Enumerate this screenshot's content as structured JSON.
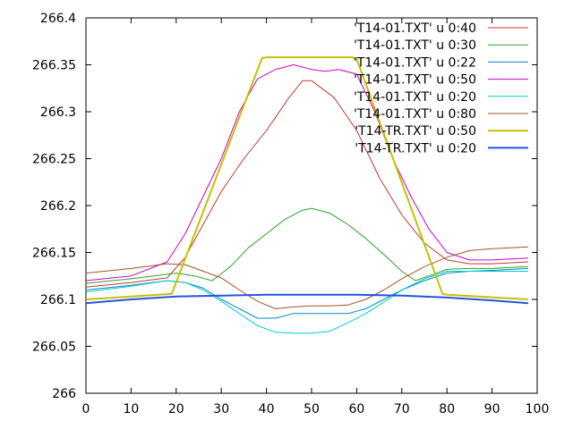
{
  "chart_data": {
    "type": "line",
    "title": "",
    "xlabel": "",
    "ylabel": "",
    "xlim": [
      0,
      100
    ],
    "ylim": [
      266.0,
      266.4
    ],
    "grid": false,
    "legend_position": "top-right",
    "x_ticks": [
      0,
      10,
      20,
      30,
      40,
      50,
      60,
      70,
      80,
      90,
      100
    ],
    "x_tick_labels": [
      "0",
      "10",
      "20",
      "30",
      "40",
      "50",
      "60",
      "70",
      "80",
      "90",
      "100"
    ],
    "y_ticks": [
      266.0,
      266.05,
      266.1,
      266.15,
      266.2,
      266.25,
      266.3,
      266.35,
      266.4
    ],
    "y_tick_labels": [
      "266",
      "266.05",
      "266.1",
      "266.15",
      "266.2",
      "266.25",
      "266.3",
      "266.35",
      "266.4"
    ],
    "series": [
      {
        "name": "'T14-01.TXT' u 0:40",
        "color": "#c0392b",
        "x": [
          0,
          10,
          18,
          22,
          26,
          30,
          35,
          40,
          45,
          48,
          50,
          55,
          60,
          65,
          70,
          75,
          80,
          85,
          90,
          98
        ],
        "y": [
          266.113,
          266.118,
          266.123,
          266.145,
          266.18,
          266.215,
          266.25,
          266.28,
          266.315,
          266.333,
          266.333,
          266.315,
          266.28,
          266.23,
          266.19,
          266.16,
          266.142,
          266.138,
          266.138,
          266.14
        ]
      },
      {
        "name": "'T14-01.TXT' u 0:30",
        "color": "#2ca02c",
        "x": [
          0,
          10,
          20,
          24,
          28,
          32,
          36,
          40,
          44,
          48,
          50,
          54,
          58,
          62,
          66,
          70,
          73,
          76,
          80,
          85,
          90,
          98
        ],
        "y": [
          266.117,
          266.122,
          266.128,
          266.125,
          266.12,
          266.135,
          266.155,
          266.17,
          266.185,
          266.195,
          266.197,
          266.192,
          266.18,
          266.165,
          266.148,
          266.13,
          266.12,
          266.125,
          266.132,
          266.133,
          266.133,
          266.135
        ]
      },
      {
        "name": "'T14-01.TXT' u 0:22",
        "color": "#0088cc",
        "x": [
          0,
          10,
          18,
          22,
          26,
          30,
          34,
          38,
          42,
          46,
          50,
          54,
          58,
          62,
          66,
          70,
          75,
          80,
          85,
          90,
          98
        ],
        "y": [
          266.11,
          266.115,
          266.12,
          266.118,
          266.112,
          266.1,
          266.09,
          266.08,
          266.08,
          266.085,
          266.085,
          266.085,
          266.085,
          266.09,
          266.1,
          266.11,
          266.12,
          266.128,
          266.13,
          266.131,
          266.133
        ]
      },
      {
        "name": "'T14-01.TXT' u 0:50",
        "color": "#cc00cc",
        "x": [
          0,
          10,
          18,
          22,
          26,
          30,
          34,
          38,
          42,
          46,
          50,
          53,
          56,
          60,
          64,
          68,
          72,
          76,
          80,
          85,
          90,
          98
        ],
        "y": [
          266.12,
          266.125,
          266.14,
          266.17,
          266.21,
          266.25,
          266.3,
          266.335,
          266.345,
          266.35,
          266.345,
          266.343,
          266.345,
          266.34,
          266.3,
          266.25,
          266.21,
          266.175,
          266.15,
          266.142,
          266.142,
          266.144
        ]
      },
      {
        "name": "'T14-01.TXT' u 0:20",
        "color": "#00cccc",
        "x": [
          0,
          10,
          18,
          22,
          26,
          30,
          34,
          38,
          42,
          46,
          50,
          54,
          58,
          62,
          66,
          70,
          75,
          80,
          85,
          90,
          98
        ],
        "y": [
          266.108,
          266.114,
          266.12,
          266.118,
          266.11,
          266.098,
          266.085,
          266.072,
          266.065,
          266.064,
          266.064,
          266.066,
          266.075,
          266.085,
          266.097,
          266.11,
          266.122,
          266.13,
          266.13,
          266.13,
          266.13
        ]
      },
      {
        "name": "'T14-01.TXT' u 0:80",
        "color": "#a0522d",
        "x": [
          0,
          10,
          18,
          22,
          26,
          30,
          34,
          38,
          42,
          46,
          50,
          54,
          58,
          62,
          66,
          70,
          75,
          80,
          85,
          90,
          98
        ],
        "y": [
          266.128,
          266.133,
          266.138,
          266.137,
          266.13,
          266.123,
          266.11,
          266.098,
          266.09,
          266.092,
          266.093,
          266.093,
          266.094,
          266.1,
          266.11,
          266.122,
          266.135,
          266.145,
          266.152,
          266.154,
          266.156
        ]
      },
      {
        "name": "'T14-TR.TXT' u 0:50",
        "color": "#c8c000",
        "x": [
          0,
          10,
          19,
          39,
          40,
          59,
          60,
          79,
          80,
          98
        ],
        "y": [
          266.1,
          266.103,
          266.106,
          266.357,
          266.358,
          266.358,
          266.356,
          266.106,
          266.105,
          266.1
        ]
      },
      {
        "name": "'T14-TR.TXT' u 0:20",
        "color": "#2255dd",
        "x": [
          0,
          10,
          20,
          30,
          40,
          50,
          60,
          70,
          80,
          90,
          98
        ],
        "y": [
          266.096,
          266.1,
          266.103,
          266.104,
          266.105,
          266.105,
          266.105,
          266.104,
          266.102,
          266.099,
          266.096
        ]
      }
    ]
  }
}
